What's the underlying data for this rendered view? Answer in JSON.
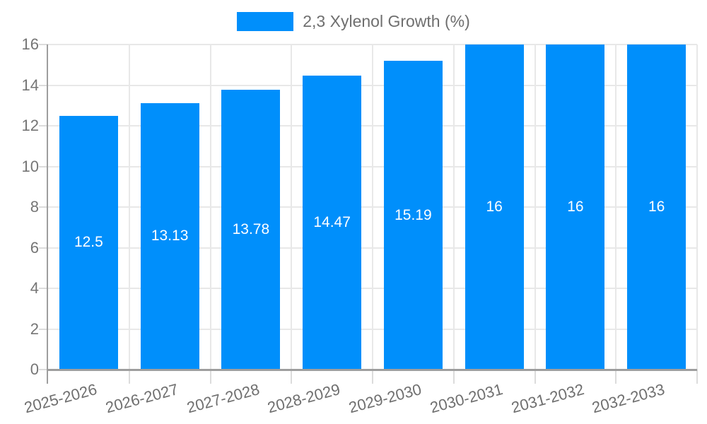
{
  "chart_data": {
    "type": "bar",
    "title": "",
    "xlabel": "",
    "ylabel": "",
    "legend": {
      "label": "2,3 Xylenol Growth (%)",
      "position": "top"
    },
    "categories": [
      "2025-2026",
      "2026-2027",
      "2027-2028",
      "2028-2029",
      "2029-2030",
      "2030-2031",
      "2031-2032",
      "2032-2033"
    ],
    "series": [
      {
        "name": "2,3 Xylenol Growth (%)",
        "values": [
          12.5,
          13.13,
          13.78,
          14.47,
          15.19,
          16,
          16,
          16
        ]
      }
    ],
    "value_labels": [
      "12.5",
      "13.13",
      "13.78",
      "14.47",
      "15.19",
      "16",
      "16",
      "16"
    ],
    "ylim": [
      0,
      16
    ],
    "yticks": [
      0,
      2,
      4,
      6,
      8,
      10,
      12,
      14,
      16
    ],
    "grid": true,
    "legend_on": true
  },
  "colors": {
    "bar": "#008ffb",
    "grid_light": "#e8e8e8",
    "tick_light": "#dcdcdc",
    "axis_line": "#9e9e9e",
    "baseline": "#9e9e9e",
    "tick_text": "#757575",
    "xlabel_text": "#6f6f6f",
    "legend_text": "#6f6f6f",
    "bar_value_text": "#ffffff",
    "background": "#ffffff"
  }
}
